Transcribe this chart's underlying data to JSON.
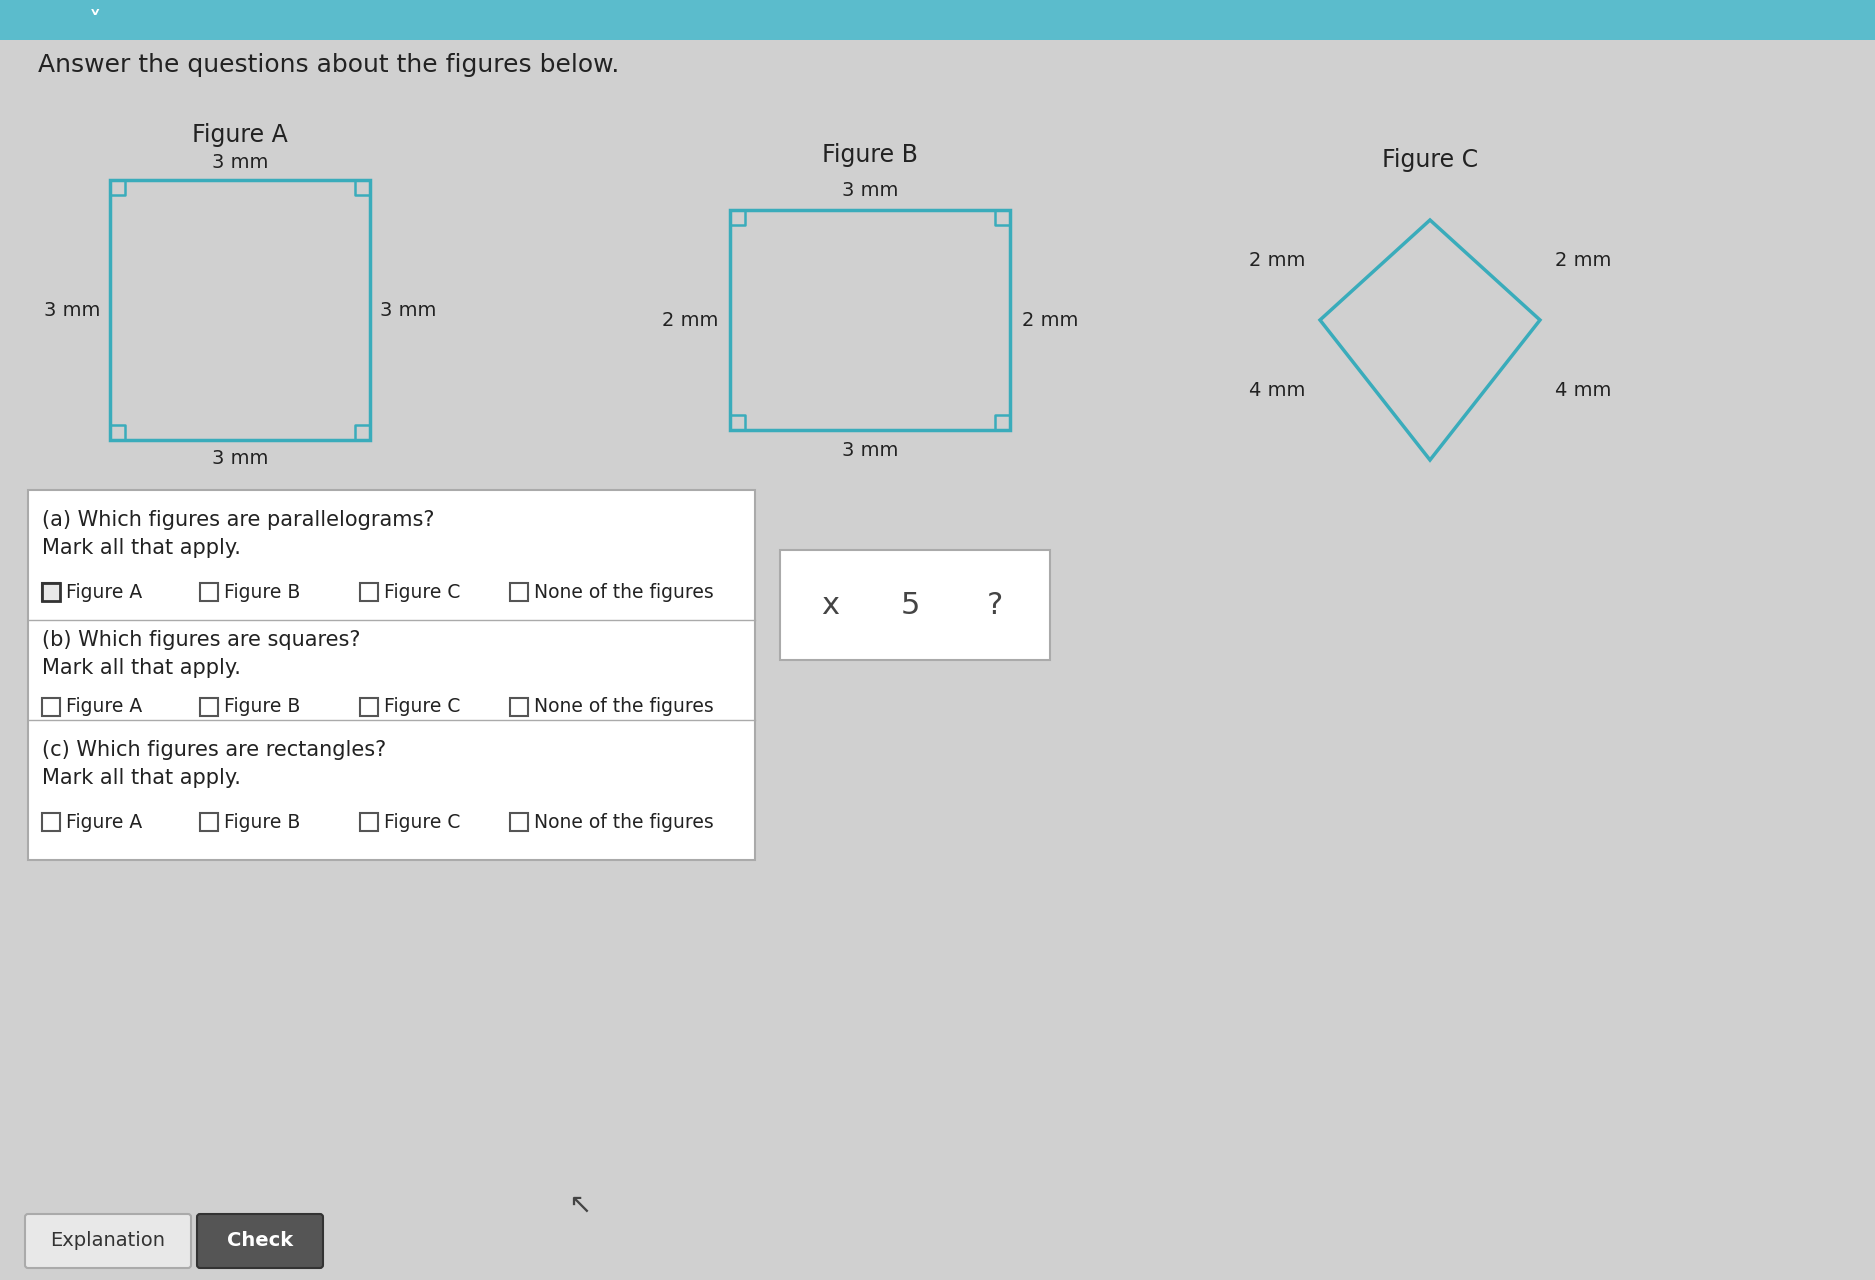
{
  "bg_color": "#d0d0d0",
  "header_color": "#5bbccc",
  "title_text": "Answer the questions about the figures below.",
  "title_fontsize": 18,
  "fig_a_title": "Figure A",
  "fig_b_title": "Figure B",
  "fig_c_title": "Figure C",
  "shape_color": "#3aacbb",
  "shape_linewidth": 2.5,
  "fig_a_labels": [
    "3 mm",
    "3 mm",
    "3 mm",
    "3 mm"
  ],
  "fig_b_labels": [
    "3 mm",
    "2 mm",
    "3 mm",
    "2 mm"
  ],
  "fig_c_labels": [
    "2 mm",
    "2 mm",
    "4 mm",
    "4 mm"
  ],
  "question_box_color": "#ffffff",
  "question_box_border": "#aaaaaa",
  "qa_text": [
    "(a) Which figures are parallelograms?\nMark all that apply.",
    "(b) Which figures are squares?\nMark all that apply.",
    "(c) Which figures are rectangles?\nMark all that apply."
  ],
  "qa_options": [
    "Figure A",
    "Figure B",
    "Figure C",
    "None of the figures"
  ],
  "answer_box_color": "#ffffff",
  "answer_box_border": "#aaaaaa",
  "answer_symbols": [
    "x",
    "5",
    "?"
  ],
  "check_button_color": "#555555",
  "explanation_button_color": "#f0f0f0"
}
